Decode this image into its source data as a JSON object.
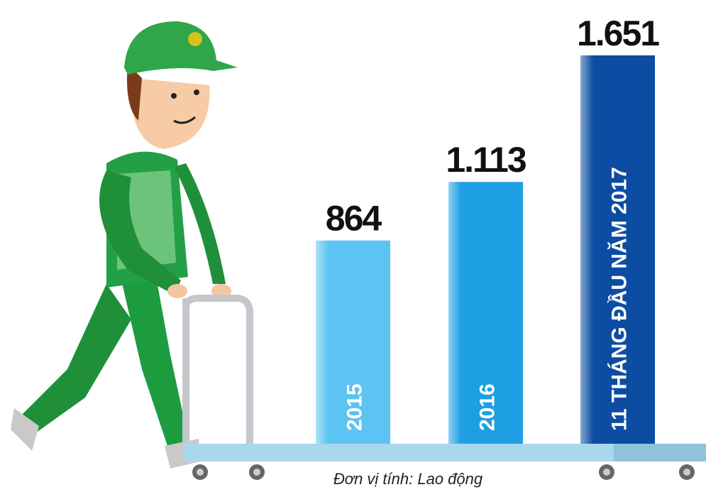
{
  "chart_data": {
    "type": "bar",
    "categories": [
      "2015",
      "2016",
      "11 THÁNG ĐẦU NĂM 2017"
    ],
    "values": [
      864,
      1113,
      1651
    ],
    "value_labels": [
      "864",
      "1.113",
      "1.651"
    ],
    "colors": [
      "#5cc3f2",
      "#1e9fe4",
      "#0c4da3"
    ],
    "note": "Đơn vị tính: Lao động"
  }
}
